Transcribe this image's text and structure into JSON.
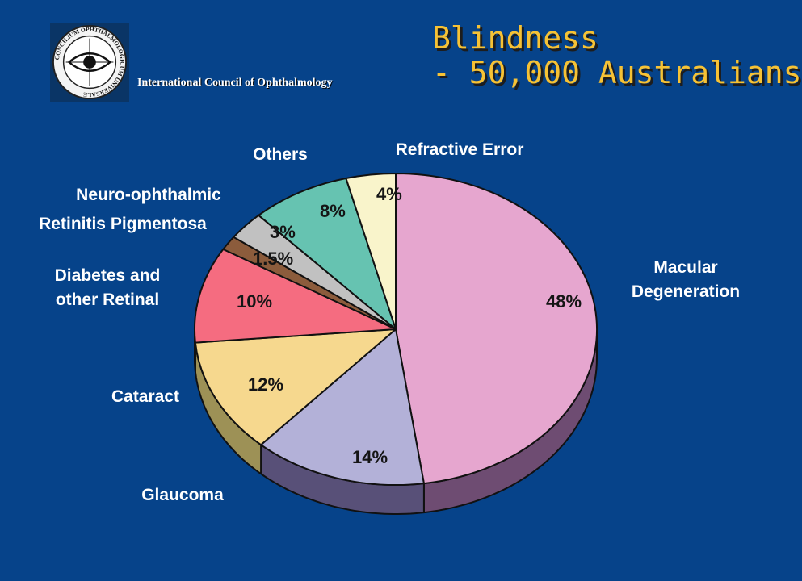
{
  "header": {
    "org_name": "International Council of Ophthalmology",
    "logo_text": "CONCILIUM OPHTHALMOLOGICUM UNIVERSALE",
    "logo_icon": "eye-emblem-icon",
    "title_line1": "Blindness",
    "title_line2": "- 50,000 Australians"
  },
  "colors": {
    "background": "#06438a",
    "title": "#f6c235"
  },
  "chart_data": {
    "type": "pie",
    "style": "3d",
    "title": "",
    "slices": [
      {
        "name": "Macular Degeneration",
        "label_lines": [
          "Macular",
          "Degeneration"
        ],
        "value": 48,
        "value_label": "48%",
        "color": "#e6a6cf",
        "side_color": "#6e4c72"
      },
      {
        "name": "Glaucoma",
        "label_lines": [
          "Glaucoma"
        ],
        "value": 14,
        "value_label": "14%",
        "color": "#b3b1d8",
        "side_color": "#585078"
      },
      {
        "name": "Cataract",
        "label_lines": [
          "Cataract"
        ],
        "value": 12,
        "value_label": "12%",
        "color": "#f6d88e",
        "side_color": "#9d9156"
      },
      {
        "name": "Diabetes and other Retinal",
        "label_lines": [
          "Diabetes and",
          "other Retinal"
        ],
        "value": 10,
        "value_label": "10%",
        "color": "#f56c80",
        "side_color": "#8a3a48"
      },
      {
        "name": "Retinitis Pigmentosa",
        "label_lines": [
          "Retinitis Pigmentosa"
        ],
        "value": 1.5,
        "value_label": "1.5%",
        "color": "#8c5c3c",
        "side_color": "#4a3020"
      },
      {
        "name": "Neuro-ophthalmic",
        "label_lines": [
          "Neuro-ophthalmic"
        ],
        "value": 3,
        "value_label": "3%",
        "color": "#c1c1c1",
        "side_color": "#6a6a6a"
      },
      {
        "name": "Others",
        "label_lines": [
          "Others"
        ],
        "value": 8,
        "value_label": "8%",
        "color": "#66c3b1",
        "side_color": "#2e6e62"
      },
      {
        "name": "Refractive Error",
        "label_lines": [
          "Refractive Error"
        ],
        "value": 4,
        "value_label": "4%",
        "color": "#f9f4cb",
        "side_color": "#8f8a6a"
      }
    ],
    "start": "12 o'clock",
    "direction": "clockwise",
    "legend": "none"
  }
}
